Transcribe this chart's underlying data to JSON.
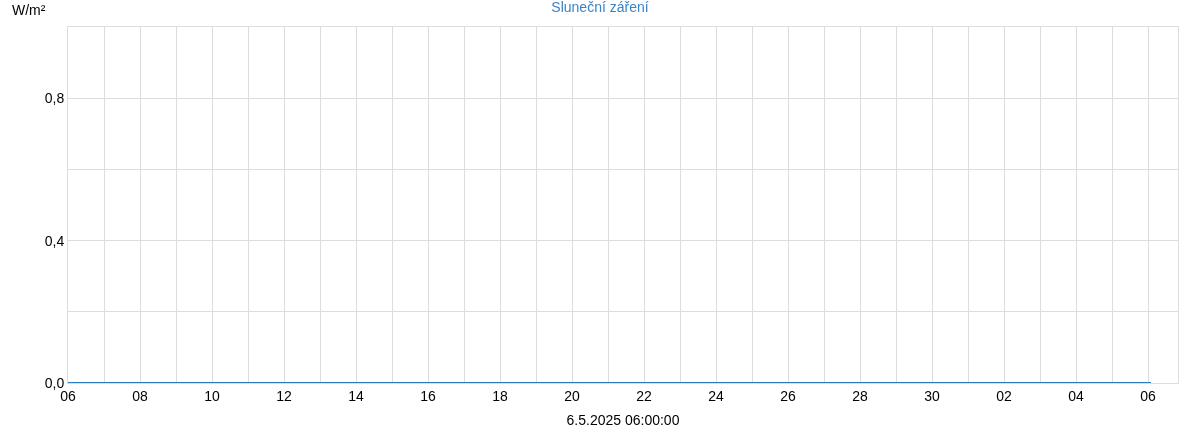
{
  "chart_data": {
    "type": "line",
    "title": "Sluneční záření",
    "xlabel": "6.5.2025 06:00:00",
    "ylabel": "W/m²",
    "x": [
      "2025-04-06",
      "2025-05-06T02:00"
    ],
    "series": [
      {
        "color": "#2f7bbf",
        "values": [
          0,
          0
        ]
      }
    ],
    "xlim": [
      "2025-04-06",
      "2025-05-06T20:00"
    ],
    "xticks": [
      {
        "value": "2025-04-06",
        "label": "06"
      },
      {
        "value": "2025-04-07",
        "label": null
      },
      {
        "value": "2025-04-08",
        "label": "08"
      },
      {
        "value": "2025-04-09",
        "label": null
      },
      {
        "value": "2025-04-10",
        "label": "10"
      },
      {
        "value": "2025-04-11",
        "label": null
      },
      {
        "value": "2025-04-12",
        "label": "12"
      },
      {
        "value": "2025-04-13",
        "label": null
      },
      {
        "value": "2025-04-14",
        "label": "14"
      },
      {
        "value": "2025-04-15",
        "label": null
      },
      {
        "value": "2025-04-16",
        "label": "16"
      },
      {
        "value": "2025-04-17",
        "label": null
      },
      {
        "value": "2025-04-18",
        "label": "18"
      },
      {
        "value": "2025-04-19",
        "label": null
      },
      {
        "value": "2025-04-20",
        "label": "20"
      },
      {
        "value": "2025-04-21",
        "label": null
      },
      {
        "value": "2025-04-22",
        "label": "22"
      },
      {
        "value": "2025-04-23",
        "label": null
      },
      {
        "value": "2025-04-24",
        "label": "24"
      },
      {
        "value": "2025-04-25",
        "label": null
      },
      {
        "value": "2025-04-26",
        "label": "26"
      },
      {
        "value": "2025-04-27",
        "label": null
      },
      {
        "value": "2025-04-28",
        "label": "28"
      },
      {
        "value": "2025-04-29",
        "label": null
      },
      {
        "value": "2025-04-30",
        "label": "30"
      },
      {
        "value": "2025-05-01",
        "label": null
      },
      {
        "value": "2025-05-02",
        "label": "02"
      },
      {
        "value": "2025-05-03",
        "label": null
      },
      {
        "value": "2025-05-04",
        "label": "04"
      },
      {
        "value": "2025-05-05",
        "label": null
      },
      {
        "value": "2025-05-06",
        "label": "06"
      }
    ],
    "ylim": [
      0,
      1
    ],
    "yticks": [
      {
        "value": 0,
        "label": "0,0"
      },
      {
        "value": 0.2,
        "label": null
      },
      {
        "value": 0.4,
        "label": "0,4"
      },
      {
        "value": 0.6,
        "label": null
      },
      {
        "value": 0.8,
        "label": "0,8"
      },
      {
        "value": 1,
        "label": null
      }
    ],
    "grid": true,
    "marker": "none",
    "line_style": "solid"
  }
}
